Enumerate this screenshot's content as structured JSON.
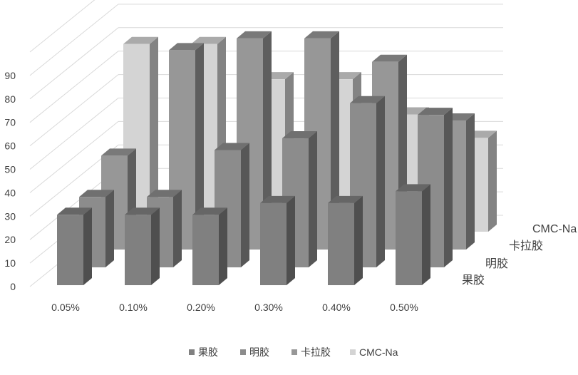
{
  "chart_data": {
    "type": "bar",
    "subtype": "3d-column",
    "title": "",
    "xlabel": "",
    "ylabel": "",
    "categories": [
      "0.05%",
      "0.10%",
      "0.20%",
      "0.30%",
      "0.40%",
      "0.50%"
    ],
    "series": [
      {
        "name": "果胶",
        "values": [
          30,
          30,
          30,
          35,
          35,
          40
        ],
        "color": "#808080"
      },
      {
        "name": "明胶",
        "values": [
          30,
          30,
          50,
          55,
          70,
          65
        ],
        "color": "#8c8c8c"
      },
      {
        "name": "卡拉胶",
        "values": [
          40,
          85,
          90,
          90,
          80,
          55
        ],
        "color": "#979797"
      },
      {
        "name": "CMC-Na",
        "values": [
          80,
          80,
          65,
          65,
          50,
          40
        ],
        "color": "#d4d4d4"
      }
    ],
    "y_ticks": [
      "0",
      "10",
      "20",
      "30",
      "40",
      "50",
      "60",
      "70",
      "80",
      "90"
    ],
    "ylim": [
      0,
      100
    ],
    "grid": true,
    "legend": "bottom",
    "legend_items": [
      "果胶",
      "明胶",
      "卡拉胶",
      "CMC-Na"
    ]
  }
}
